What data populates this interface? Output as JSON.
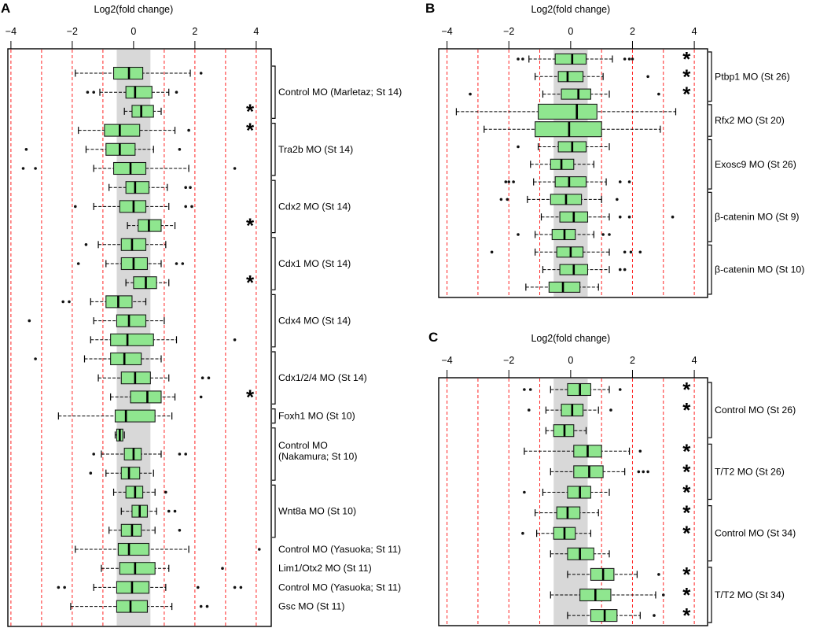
{
  "colors": {
    "box_fill": "#8fe68f",
    "box_stroke": "#1a1a1a",
    "median": "#000000",
    "whisker": "#000000",
    "grid_red": "#ff2222",
    "band_gray": "#d8d8d8",
    "asterisk": "#4a5d23",
    "outlier": "#111111"
  },
  "chart_data": [
    {
      "panel": "A",
      "type": "boxplot",
      "orientation": "horizontal",
      "title": "Log2(fold change)",
      "x_ticks": [
        -4,
        -2,
        0,
        2,
        4
      ],
      "xlim": [
        -4.1,
        4.49
      ],
      "red_dashed_gridlines": [
        -4,
        -3,
        -2,
        -1,
        1,
        2,
        3,
        4
      ],
      "gray_band": [
        -0.55,
        0.55
      ],
      "asterisk_x": 3.8,
      "significance_marker": "*",
      "groups": [
        {
          "label": "Control MO (Marletaz; St 14)",
          "bracket": true,
          "rows": [
            {
              "lo": -1.9,
              "q1": -0.65,
              "med": -0.15,
              "q3": 0.3,
              "hi": 1.85,
              "out": [
                2.2
              ],
              "sig": false
            },
            {
              "lo": -1.1,
              "q1": -0.25,
              "med": 0.05,
              "q3": 0.6,
              "hi": 1.15,
              "out": [
                -1.5,
                -1.3,
                1.4
              ],
              "sig": false
            },
            {
              "lo": -0.3,
              "q1": -0.05,
              "med": 0.25,
              "q3": 0.65,
              "hi": 0.9,
              "out": [],
              "sig": true
            }
          ]
        },
        {
          "label": "Tra2b MO (St 14)",
          "bracket": true,
          "rows": [
            {
              "lo": -1.8,
              "q1": -0.95,
              "med": -0.45,
              "q3": 0.2,
              "hi": 1.35,
              "out": [
                1.8
              ],
              "sig": true
            },
            {
              "lo": -1.55,
              "q1": -0.9,
              "med": -0.45,
              "q3": 0.05,
              "hi": 0.65,
              "out": [
                -3.5,
                1.5
              ],
              "sig": false
            },
            {
              "lo": -1.3,
              "q1": -0.65,
              "med": -0.1,
              "q3": 0.4,
              "hi": 1.8,
              "out": [
                -3.6,
                -3.2,
                3.3
              ],
              "sig": false
            }
          ]
        },
        {
          "label": "Cdx2 MO (St 14)",
          "bracket": true,
          "rows": [
            {
              "lo": -0.8,
              "q1": -0.25,
              "med": 0.05,
              "q3": 0.5,
              "hi": 1.1,
              "out": [
                1.7,
                1.85
              ],
              "sig": false
            },
            {
              "lo": -1.3,
              "q1": -0.45,
              "med": 0.0,
              "q3": 0.4,
              "hi": 1.15,
              "out": [
                -1.9,
                1.7,
                1.9
              ],
              "sig": false
            },
            {
              "lo": -0.2,
              "q1": 0.15,
              "med": 0.5,
              "q3": 0.9,
              "hi": 1.35,
              "out": [],
              "sig": true
            }
          ]
        },
        {
          "label": "Cdx1 MO (St 14)",
          "bracket": true,
          "rows": [
            {
              "lo": -1.15,
              "q1": -0.4,
              "med": -0.05,
              "q3": 0.4,
              "hi": 1.05,
              "out": [
                -1.55
              ],
              "sig": false
            },
            {
              "lo": -0.9,
              "q1": -0.4,
              "med": 0.0,
              "q3": 0.45,
              "hi": 0.9,
              "out": [
                -1.8,
                1.4,
                1.6
              ],
              "sig": false
            },
            {
              "lo": -0.25,
              "q1": 0.0,
              "med": 0.4,
              "q3": 0.75,
              "hi": 1.15,
              "out": [],
              "sig": true
            }
          ]
        },
        {
          "label": "Cdx4 MO (St 14)",
          "bracket": true,
          "rows": [
            {
              "lo": -1.4,
              "q1": -0.9,
              "med": -0.5,
              "q3": -0.05,
              "hi": 0.4,
              "out": [
                -2.3,
                -2.1
              ],
              "sig": false
            },
            {
              "lo": -1.3,
              "q1": -0.55,
              "med": -0.15,
              "q3": 0.4,
              "hi": 1.0,
              "out": [
                -3.4
              ],
              "sig": false
            },
            {
              "lo": -1.4,
              "q1": -0.75,
              "med": -0.2,
              "q3": 0.65,
              "hi": 1.4,
              "out": [
                3.3
              ],
              "sig": false
            }
          ]
        },
        {
          "label": "Cdx1/2/4 MO (St 14)",
          "bracket": true,
          "rows": [
            {
              "lo": -1.6,
              "q1": -0.75,
              "med": -0.3,
              "q3": 0.25,
              "hi": 0.9,
              "out": [
                -3.2
              ],
              "sig": false
            },
            {
              "lo": -1.15,
              "q1": -0.4,
              "med": 0.05,
              "q3": 0.55,
              "hi": 1.15,
              "out": [
                2.25,
                2.45
              ],
              "sig": false
            },
            {
              "lo": -0.75,
              "q1": -0.1,
              "med": 0.45,
              "q3": 0.9,
              "hi": 1.35,
              "out": [
                2.2
              ],
              "sig": true
            }
          ]
        },
        {
          "label": "Foxh1 MO (St 10)",
          "bracket": true,
          "rows": [
            {
              "lo": -2.45,
              "q1": -0.6,
              "med": -0.25,
              "q3": 0.7,
              "hi": 1.25,
              "out": [],
              "sig": false
            }
          ]
        },
        {
          "label": "Control MO\n(Nakamura; St 10)",
          "bracket": true,
          "rows": [
            {
              "lo": -0.6,
              "q1": -0.55,
              "med": -0.45,
              "q3": -0.35,
              "hi": -0.3,
              "out": [],
              "sig": false
            },
            {
              "lo": -1.05,
              "q1": -0.3,
              "med": 0.0,
              "q3": 0.25,
              "hi": 0.9,
              "out": [
                -1.3,
                1.5,
                1.7
              ],
              "sig": false
            },
            {
              "lo": -0.9,
              "q1": -0.4,
              "med": -0.15,
              "q3": 0.2,
              "hi": 0.65,
              "out": [
                -1.4
              ],
              "sig": false
            }
          ]
        },
        {
          "label": "Wnt8a MO (St 10)",
          "bracket": true,
          "rows": [
            {
              "lo": -0.65,
              "q1": -0.25,
              "med": 0.05,
              "q3": 0.3,
              "hi": 0.7,
              "out": [
                1.05
              ],
              "sig": false
            },
            {
              "lo": -0.4,
              "q1": -0.05,
              "med": 0.2,
              "q3": 0.45,
              "hi": 0.75,
              "out": [
                1.15,
                1.35
              ],
              "sig": false
            },
            {
              "lo": -0.8,
              "q1": -0.4,
              "med": -0.05,
              "q3": 0.25,
              "hi": 0.7,
              "out": [
                1.5
              ],
              "sig": false
            }
          ]
        },
        {
          "label": "Control MO (Yasuoka; St 11)",
          "bracket": false,
          "rows": [
            {
              "lo": -1.9,
              "q1": -0.5,
              "med": -0.15,
              "q3": 0.5,
              "hi": 1.8,
              "out": [
                4.1
              ],
              "sig": false
            }
          ]
        },
        {
          "label": "Lim1/Otx2 MO (St 11)",
          "bracket": false,
          "rows": [
            {
              "lo": -1.05,
              "q1": -0.45,
              "med": 0.05,
              "q3": 0.7,
              "hi": 1.15,
              "out": [
                2.9
              ],
              "sig": false
            }
          ]
        },
        {
          "label": "Control MO (Yasuoka; St 11)",
          "bracket": false,
          "rows": [
            {
              "lo": -1.3,
              "q1": -0.55,
              "med": -0.05,
              "q3": 0.5,
              "hi": 1.05,
              "out": [
                -2.45,
                -2.25,
                2.1,
                3.3,
                3.5
              ],
              "sig": false
            }
          ]
        },
        {
          "label": "Gsc MO (St 11)",
          "bracket": false,
          "rows": [
            {
              "lo": -2.05,
              "q1": -0.55,
              "med": -0.1,
              "q3": 0.45,
              "hi": 1.25,
              "out": [
                2.2,
                2.4
              ],
              "sig": false
            }
          ]
        }
      ]
    },
    {
      "panel": "B",
      "type": "boxplot",
      "orientation": "horizontal",
      "title": "Log2(fold change)",
      "x_ticks": [
        -4,
        -2,
        0,
        2,
        4
      ],
      "xlim": [
        -4.27,
        4.43
      ],
      "red_dashed_gridlines": [
        -4,
        -3,
        -2,
        -1,
        1,
        2,
        3,
        4
      ],
      "gray_band": [
        -0.55,
        0.55
      ],
      "asterisk_x": 3.75,
      "significance_marker": "*",
      "groups": [
        {
          "label": "Ptbp1 MO (St 26)",
          "bracket": true,
          "rows": [
            {
              "lo": -1.35,
              "q1": -0.5,
              "med": 0.05,
              "q3": 0.5,
              "hi": 1.35,
              "out": [
                -1.7,
                -1.55,
                1.75,
                1.9,
                2.0
              ],
              "sig": true
            },
            {
              "lo": -1.15,
              "q1": -0.4,
              "med": -0.1,
              "q3": 0.4,
              "hi": 1.05,
              "out": [
                2.5
              ],
              "sig": true
            },
            {
              "lo": -0.9,
              "q1": -0.3,
              "med": 0.25,
              "q3": 0.65,
              "hi": 1.25,
              "out": [
                -3.25,
                2.85
              ],
              "sig": true
            }
          ]
        },
        {
          "label": "Rfx2 MO (St 20)",
          "bracket": true,
          "rows": [
            {
              "lo": -3.7,
              "q1": -1.05,
              "med": 0.2,
              "q3": 0.85,
              "hi": 3.4,
              "out": [],
              "sig": false,
              "h": 19
            },
            {
              "lo": -2.8,
              "q1": -1.15,
              "med": -0.05,
              "q3": 1.0,
              "hi": 2.9,
              "out": [],
              "sig": false,
              "h": 19
            }
          ]
        },
        {
          "label": "Exosc9 MO (St 26)",
          "bracket": true,
          "rows": [
            {
              "lo": -1.05,
              "q1": -0.4,
              "med": 0.05,
              "q3": 0.5,
              "hi": 1.25,
              "out": [
                -1.7
              ],
              "sig": false
            },
            {
              "lo": -1.3,
              "q1": -0.65,
              "med": -0.3,
              "q3": 0.1,
              "hi": 0.75,
              "out": [],
              "sig": false
            },
            {
              "lo": -1.2,
              "q1": -0.5,
              "med": -0.05,
              "q3": 0.5,
              "hi": 1.15,
              "out": [
                -2.1,
                -2.0,
                -1.85,
                1.6,
                1.9
              ],
              "sig": false
            }
          ]
        },
        {
          "label": "β-catenin MO (St 9)",
          "bracket": true,
          "rows": [
            {
              "lo": -1.4,
              "q1": -0.65,
              "med": -0.15,
              "q3": 0.35,
              "hi": 1.0,
              "out": [
                -2.25,
                -2.05,
                1.5
              ],
              "sig": false
            },
            {
              "lo": -0.95,
              "q1": -0.35,
              "med": 0.1,
              "q3": 0.55,
              "hi": 1.25,
              "out": [
                1.6,
                1.9,
                3.3
              ],
              "sig": false
            },
            {
              "lo": -1.15,
              "q1": -0.6,
              "med": -0.2,
              "q3": 0.15,
              "hi": 0.75,
              "out": [
                -1.7,
                1.05,
                1.25
              ],
              "sig": false
            }
          ]
        },
        {
          "label": "β-catenin MO (St 10)",
          "bracket": true,
          "rows": [
            {
              "lo": -1.15,
              "q1": -0.45,
              "med": 0.0,
              "q3": 0.4,
              "hi": 1.25,
              "out": [
                -2.55,
                1.75,
                1.95,
                2.25
              ],
              "sig": false
            },
            {
              "lo": -0.9,
              "q1": -0.35,
              "med": 0.1,
              "q3": 0.55,
              "hi": 1.25,
              "out": [
                1.6,
                1.75
              ],
              "sig": false
            },
            {
              "lo": -1.45,
              "q1": -0.7,
              "med": -0.25,
              "q3": 0.3,
              "hi": 0.9,
              "out": [],
              "sig": false
            }
          ]
        }
      ]
    },
    {
      "panel": "C",
      "type": "boxplot",
      "orientation": "horizontal",
      "title": "Log2(fold change)",
      "x_ticks": [
        -4,
        -2,
        0,
        2,
        4
      ],
      "xlim": [
        -4.27,
        4.43
      ],
      "red_dashed_gridlines": [
        -4,
        -3,
        -2,
        -1,
        1,
        2,
        3,
        4
      ],
      "gray_band": [
        -0.55,
        0.55
      ],
      "asterisk_x": 3.75,
      "significance_marker": "*",
      "groups": [
        {
          "label": "Control MO (St 26)",
          "bracket": true,
          "rows": [
            {
              "lo": -0.65,
              "q1": -0.1,
              "med": 0.3,
              "q3": 0.65,
              "hi": 1.25,
              "out": [
                -1.5,
                -1.3,
                1.6
              ],
              "sig": true
            },
            {
              "lo": -0.8,
              "q1": -0.3,
              "med": 0.05,
              "q3": 0.4,
              "hi": 0.9,
              "out": [
                -1.35,
                1.3
              ],
              "sig": true
            },
            {
              "lo": -0.8,
              "q1": -0.55,
              "med": -0.2,
              "q3": 0.1,
              "hi": 0.5,
              "out": [],
              "sig": false
            }
          ]
        },
        {
          "label": "T/T2 MO (St 26)",
          "bracket": true,
          "rows": [
            {
              "lo": -1.5,
              "q1": 0.1,
              "med": 0.55,
              "q3": 1.0,
              "hi": 1.9,
              "out": [
                2.25
              ],
              "sig": true
            },
            {
              "lo": -0.65,
              "q1": 0.1,
              "med": 0.6,
              "q3": 1.05,
              "hi": 1.75,
              "out": [
                2.2,
                2.35,
                2.5
              ],
              "sig": true
            },
            {
              "lo": -0.9,
              "q1": -0.1,
              "med": 0.3,
              "q3": 0.65,
              "hi": 1.25,
              "out": [
                -1.5
              ],
              "sig": true
            }
          ]
        },
        {
          "label": "Control MO (St 34)",
          "bracket": true,
          "rows": [
            {
              "lo": -1.15,
              "q1": -0.45,
              "med": -0.1,
              "q3": 0.3,
              "hi": 0.9,
              "out": [],
              "sig": true
            },
            {
              "lo": -1.1,
              "q1": -0.55,
              "med": -0.2,
              "q3": 0.15,
              "hi": 0.65,
              "out": [
                -1.55
              ],
              "sig": true
            },
            {
              "lo": -0.65,
              "q1": -0.1,
              "med": 0.3,
              "q3": 0.75,
              "hi": 1.25,
              "out": [],
              "sig": false
            }
          ]
        },
        {
          "label": "T/T2 MO (St 34)",
          "bracket": true,
          "rows": [
            {
              "lo": -0.1,
              "q1": 0.65,
              "med": 1.05,
              "q3": 1.4,
              "hi": 2.15,
              "out": [
                2.85
              ],
              "sig": true
            },
            {
              "lo": -0.65,
              "q1": 0.3,
              "med": 0.8,
              "q3": 1.3,
              "hi": 2.75,
              "out": [
                3.0
              ],
              "sig": true
            },
            {
              "lo": -0.1,
              "q1": 0.65,
              "med": 1.1,
              "q3": 1.5,
              "hi": 2.25,
              "out": [
                2.7
              ],
              "sig": true
            }
          ]
        }
      ]
    }
  ]
}
